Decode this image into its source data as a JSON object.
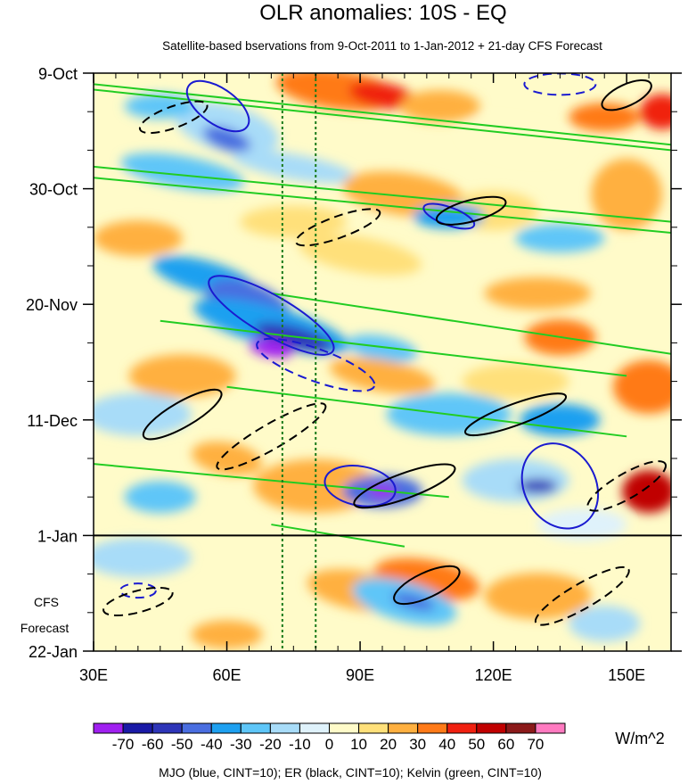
{
  "chart_data": {
    "type": "heatmap",
    "title": "OLR anomalies: 10S - EQ",
    "subtitle": "Satellite-based bservations from 9-Oct-2011 to 1-Jan-2012 + 21-day CFS Forecast",
    "x_ticks": [
      {
        "value": 30,
        "label": "30E"
      },
      {
        "value": 60,
        "label": "60E"
      },
      {
        "value": 90,
        "label": "90E"
      },
      {
        "value": 120,
        "label": "120E"
      },
      {
        "value": 150,
        "label": "150E"
      }
    ],
    "xlim": [
      30,
      160
    ],
    "y_ticks": [
      {
        "day": 0,
        "label": "9-Oct"
      },
      {
        "day": 21,
        "label": "30-Oct"
      },
      {
        "day": 42,
        "label": "20-Nov"
      },
      {
        "day": 63,
        "label": "11-Dec"
      },
      {
        "day": 84,
        "label": "1-Jan"
      },
      {
        "day": 105,
        "label": "22-Jan"
      }
    ],
    "ylim_days": [
      0,
      105
    ],
    "forecast_start_day": 84,
    "forecast_label_line1": "CFS",
    "forecast_label_line2": "Forecast",
    "reference_longitudes": [
      72.5,
      80
    ],
    "colorbar": {
      "levels": [
        "-70",
        "-60",
        "-50",
        "-40",
        "-30",
        "-20",
        "-10",
        "0",
        "10",
        "20",
        "30",
        "40",
        "50",
        "60",
        "70"
      ],
      "colors": [
        "#a020f0",
        "#1a1aa6",
        "#2e35b8",
        "#4a6ee0",
        "#1ea0f0",
        "#5ec6f8",
        "#a8dcf8",
        "#dff2fb",
        "#fffbc9",
        "#ffe07a",
        "#ffb040",
        "#ff7a18",
        "#f02010",
        "#c00000",
        "#8b1a1a",
        "#ff7ac0"
      ],
      "units": "W/m^2"
    },
    "legend": "MJO (blue, CINT=10); ER (black, CINT=10); Kelvin (green, CINT=10)"
  }
}
